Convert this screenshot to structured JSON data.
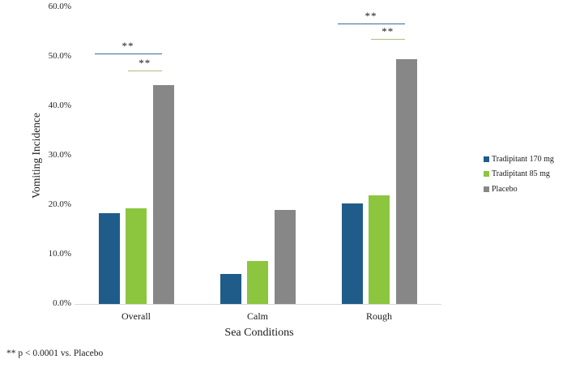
{
  "chart_data": {
    "type": "bar",
    "title": "",
    "xlabel": "Sea Conditions",
    "ylabel": "Vomiting Incidence",
    "categories": [
      "Overall",
      "Calm",
      "Rough"
    ],
    "series": [
      {
        "name": "Tradipitant 170 mg",
        "color": "#1F5C8A",
        "values": [
          18.4,
          6.0,
          20.3
        ]
      },
      {
        "name": "Tradipitant 85 mg",
        "color": "#8CC63F",
        "values": [
          19.4,
          8.7,
          21.9
        ]
      },
      {
        "name": "Placebo",
        "color": "#878787",
        "values": [
          44.3,
          19.0,
          49.5
        ]
      }
    ],
    "ylim": [
      0,
      60
    ],
    "yticks": [
      {
        "label": "0.0%",
        "value": 0
      },
      {
        "label": "10.0%",
        "value": 10
      },
      {
        "label": "20.0%",
        "value": 20
      },
      {
        "label": "30.0%",
        "value": 30
      },
      {
        "label": "40.0%",
        "value": 40
      },
      {
        "label": "50.0%",
        "value": 50
      },
      {
        "label": "60.0%",
        "value": 60
      }
    ],
    "grid": "off",
    "legend_position": "right",
    "significance_markers": [
      {
        "label": "**",
        "category_index": 0,
        "from_series": 0,
        "to_series": 2,
        "y_pct": 50.7,
        "line_color": "#3A6E96"
      },
      {
        "label": "**",
        "category_index": 0,
        "from_series": 1,
        "to_series": 2,
        "y_pct": 47.2,
        "line_color": "#AABF7E"
      },
      {
        "label": "**",
        "category_index": 2,
        "from_series": 0,
        "to_series": 2,
        "y_pct": 56.7,
        "line_color": "#3A6E96"
      },
      {
        "label": "**",
        "category_index": 2,
        "from_series": 1,
        "to_series": 2,
        "y_pct": 53.6,
        "line_color": "#AABF7E"
      }
    ],
    "footnote": "** p < 0.0001 vs. Placebo"
  }
}
